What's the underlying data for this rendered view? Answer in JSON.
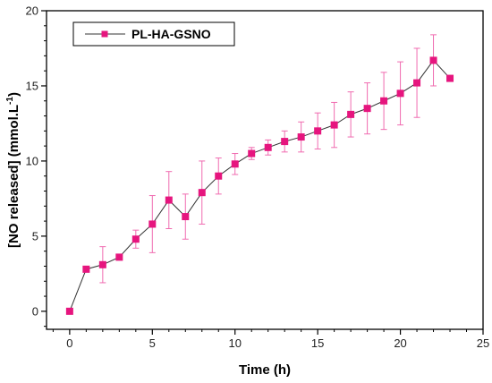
{
  "chart_data": {
    "type": "line",
    "xlabel": "Time (h)",
    "ylabel_main": "[NO released] (mmol.L",
    "ylabel_sup": "-1",
    "ylabel_close": ")",
    "xlim": [
      -1.4,
      25
    ],
    "ylim": [
      -1.2,
      20
    ],
    "x_ticks": [
      0,
      5,
      10,
      15,
      20,
      25
    ],
    "y_ticks": [
      0,
      5,
      10,
      15,
      20
    ],
    "x_minor_step": 1,
    "y_minor_step": 1,
    "grid": false,
    "legend_position": "top-left",
    "colors": {
      "marker": "#e6157e",
      "line": "#333333",
      "error": "#f06bb0"
    },
    "series": [
      {
        "name": "PL-HA-GSNO",
        "x": [
          0,
          1,
          2,
          3,
          4,
          5,
          6,
          7,
          8,
          9,
          10,
          11,
          12,
          13,
          14,
          15,
          16,
          17,
          18,
          19,
          20,
          21,
          22,
          23
        ],
        "y": [
          0,
          2.8,
          3.1,
          3.6,
          4.8,
          5.8,
          7.4,
          6.3,
          7.9,
          9.0,
          9.8,
          10.5,
          10.9,
          11.3,
          11.6,
          12.0,
          12.4,
          13.1,
          13.5,
          14.0,
          14.5,
          15.2,
          16.7,
          15.5
        ],
        "err": [
          0,
          0,
          1.2,
          0,
          0.6,
          1.9,
          1.9,
          1.5,
          2.1,
          1.2,
          0.7,
          0.4,
          0.5,
          0.7,
          1.0,
          1.2,
          1.5,
          1.5,
          1.7,
          1.9,
          2.1,
          2.3,
          1.7,
          0
        ]
      }
    ]
  }
}
